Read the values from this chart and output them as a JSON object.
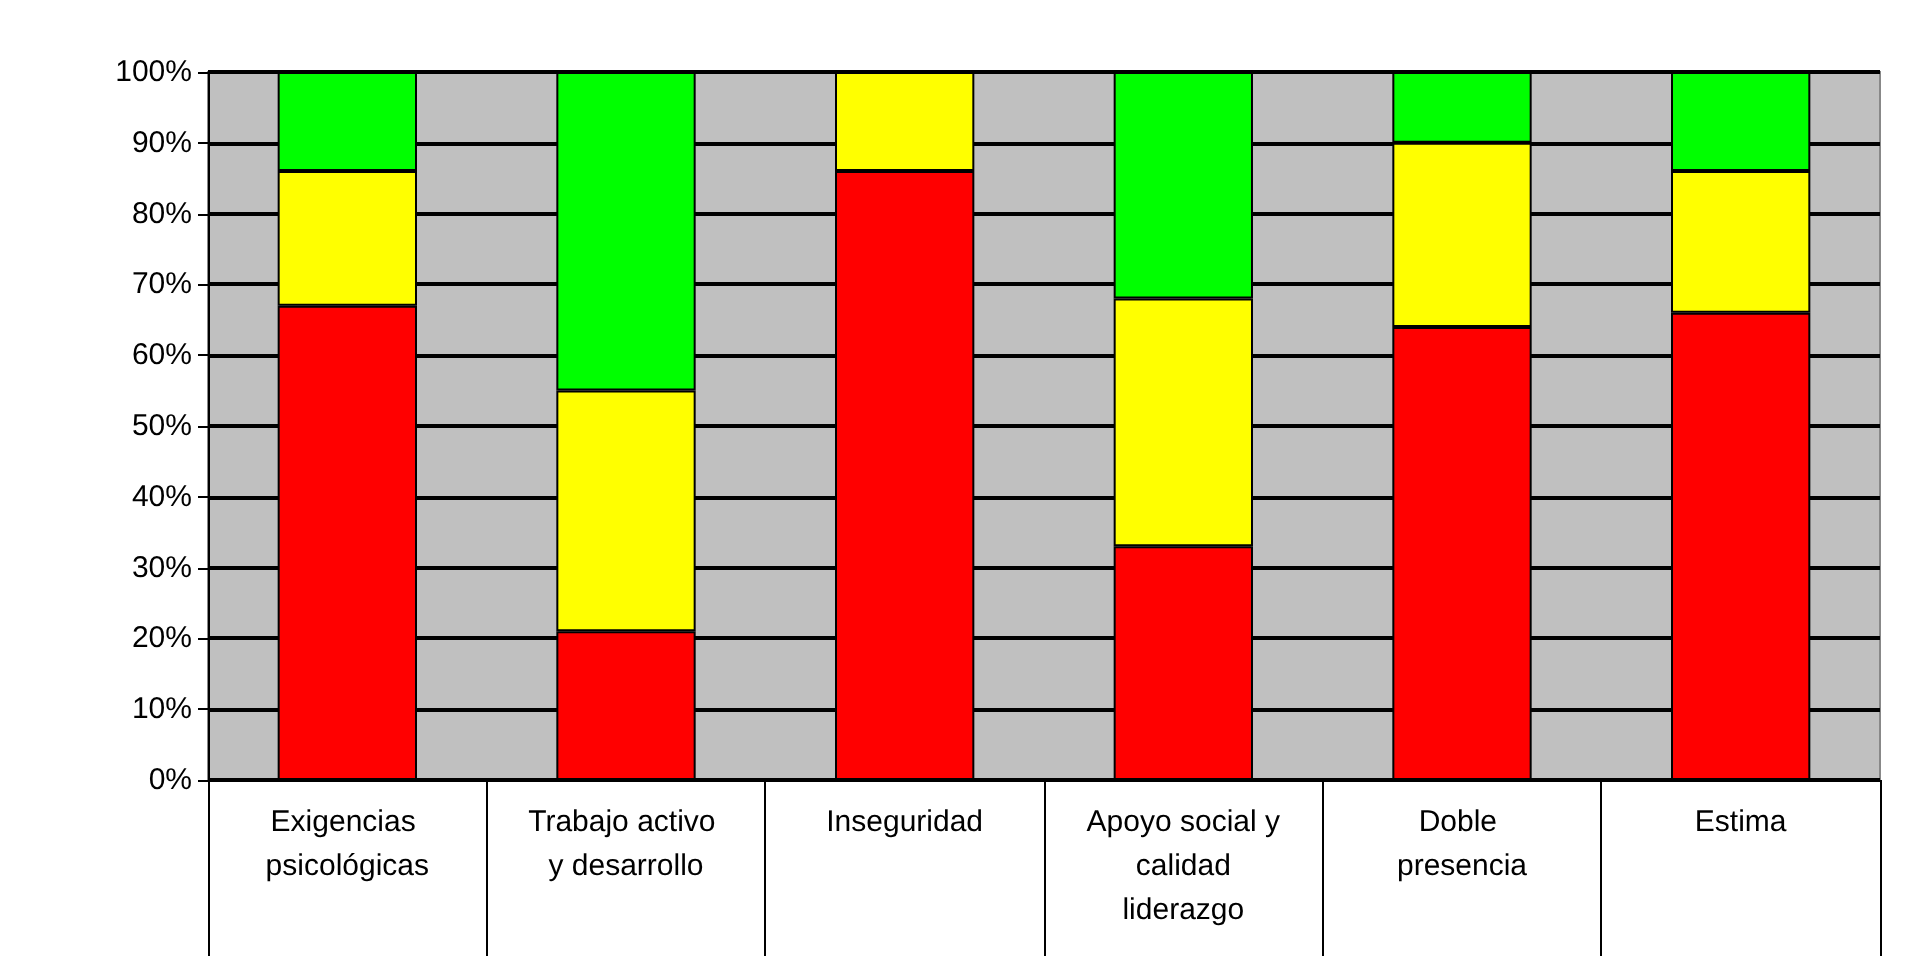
{
  "chart_data": {
    "type": "bar",
    "stacked": true,
    "categories": [
      "Exigencias psicológicas",
      "Trabajo activo y desarrollo",
      "Inseguridad",
      "Apoyo social y calidad liderazgo",
      "Doble presencia",
      "Estima"
    ],
    "series": [
      {
        "color": "#ff0000",
        "values": [
          67,
          21,
          86,
          33,
          64,
          66
        ]
      },
      {
        "color": "#ffff00",
        "values": [
          19,
          34,
          14,
          35,
          26,
          20
        ]
      },
      {
        "color": "#00ff00",
        "values": [
          14,
          45,
          0,
          32,
          10,
          14
        ]
      }
    ],
    "ylim": [
      0,
      100
    ],
    "yticks": [
      {
        "value": 0,
        "label": "0%"
      },
      {
        "value": 10,
        "label": "10%"
      },
      {
        "value": 20,
        "label": "20%"
      },
      {
        "value": 30,
        "label": "30%"
      },
      {
        "value": 40,
        "label": "40%"
      },
      {
        "value": 50,
        "label": "50%"
      },
      {
        "value": 60,
        "label": "60%"
      },
      {
        "value": 70,
        "label": "70%"
      },
      {
        "value": 80,
        "label": "80%"
      },
      {
        "value": 90,
        "label": "90%"
      },
      {
        "value": 100,
        "label": "100%"
      }
    ],
    "grid": "y"
  }
}
